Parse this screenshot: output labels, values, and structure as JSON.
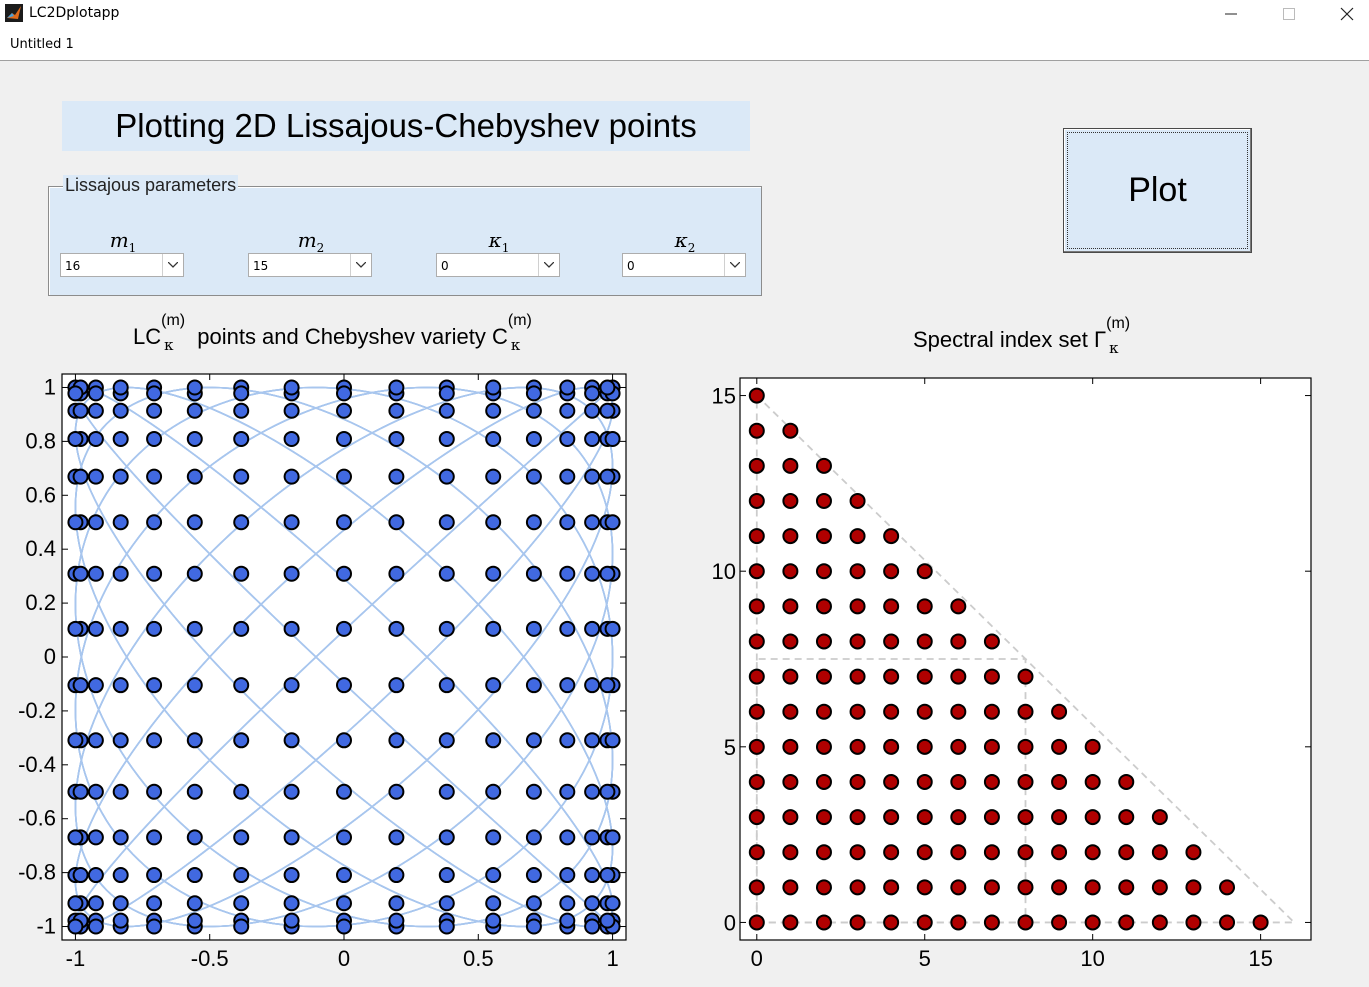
{
  "window": {
    "title": "LC2Dplotapp",
    "minimize_icon": "minimize-icon",
    "maximize_icon": "maximize-icon",
    "close_icon": "close-icon"
  },
  "menu": {
    "items": [
      "Untitled 1"
    ]
  },
  "heading": "Plotting 2D Lissajous-Chebyshev points",
  "panel": {
    "title": "Lissajous parameters",
    "params": [
      {
        "symbol": "m",
        "index": "1",
        "value": "16"
      },
      {
        "symbol": "m",
        "index": "2",
        "value": "15"
      },
      {
        "symbol": "κ",
        "index": "1",
        "value": "0"
      },
      {
        "symbol": "κ",
        "index": "2",
        "value": "0"
      }
    ]
  },
  "plot_button": "Plot",
  "colors": {
    "lc_point": "#4169e1",
    "curve": "#a8c6ee",
    "index_point": "#b00000",
    "panel_bg": "#dbe9f7"
  },
  "chart_data": [
    {
      "type": "scatter",
      "title_parts": {
        "a": "LC",
        "sup_a": "(m)",
        "sub_a": "κ",
        "mid": " points and Chebyshev variety C",
        "sup_b": "(m)",
        "sub_b": "κ"
      },
      "xlim": [
        -1.05,
        1.05
      ],
      "ylim": [
        -1.05,
        1.05
      ],
      "xticks": [
        -1,
        -0.5,
        0,
        0.5,
        1
      ],
      "yticks": [
        -1,
        -0.8,
        -0.6,
        -0.4,
        -0.2,
        0,
        0.2,
        0.4,
        0.6,
        0.8,
        1
      ],
      "params": {
        "m1": 16,
        "m2": 15,
        "kappa1": 0,
        "kappa2": 0
      },
      "series": [
        {
          "role": "curve",
          "description": "Chebyshev variety: T_m2(x) = T_m1(y) (y-symmetric) and T_m2(x) = -T_m1(y)"
        },
        {
          "role": "points",
          "rule": "x = cos(i*pi/16), y = cos(j*pi/15), i,j integer, i+j even, 0<=i<=16, 0<=j<=15"
        }
      ]
    },
    {
      "type": "scatter",
      "title_parts": {
        "a": "Spectral index set Γ",
        "sup": "(m)",
        "sub": "κ"
      },
      "xlim": [
        -0.5,
        16.5
      ],
      "ylim": [
        -0.5,
        15.5
      ],
      "xticks": [
        0,
        5,
        10,
        15
      ],
      "yticks": [
        0,
        5,
        10,
        15
      ],
      "row_max_gamma1": [
        15,
        14,
        13,
        12,
        11,
        10,
        9,
        8,
        7,
        6,
        5,
        4,
        3,
        2,
        1,
        0
      ],
      "guides": {
        "triangle": [
          [
            0,
            0
          ],
          [
            16,
            0
          ],
          [
            0,
            15
          ]
        ],
        "rectangle": [
          [
            0,
            0
          ],
          [
            8,
            0
          ],
          [
            8,
            7.5
          ],
          [
            0,
            7.5
          ]
        ]
      }
    }
  ]
}
